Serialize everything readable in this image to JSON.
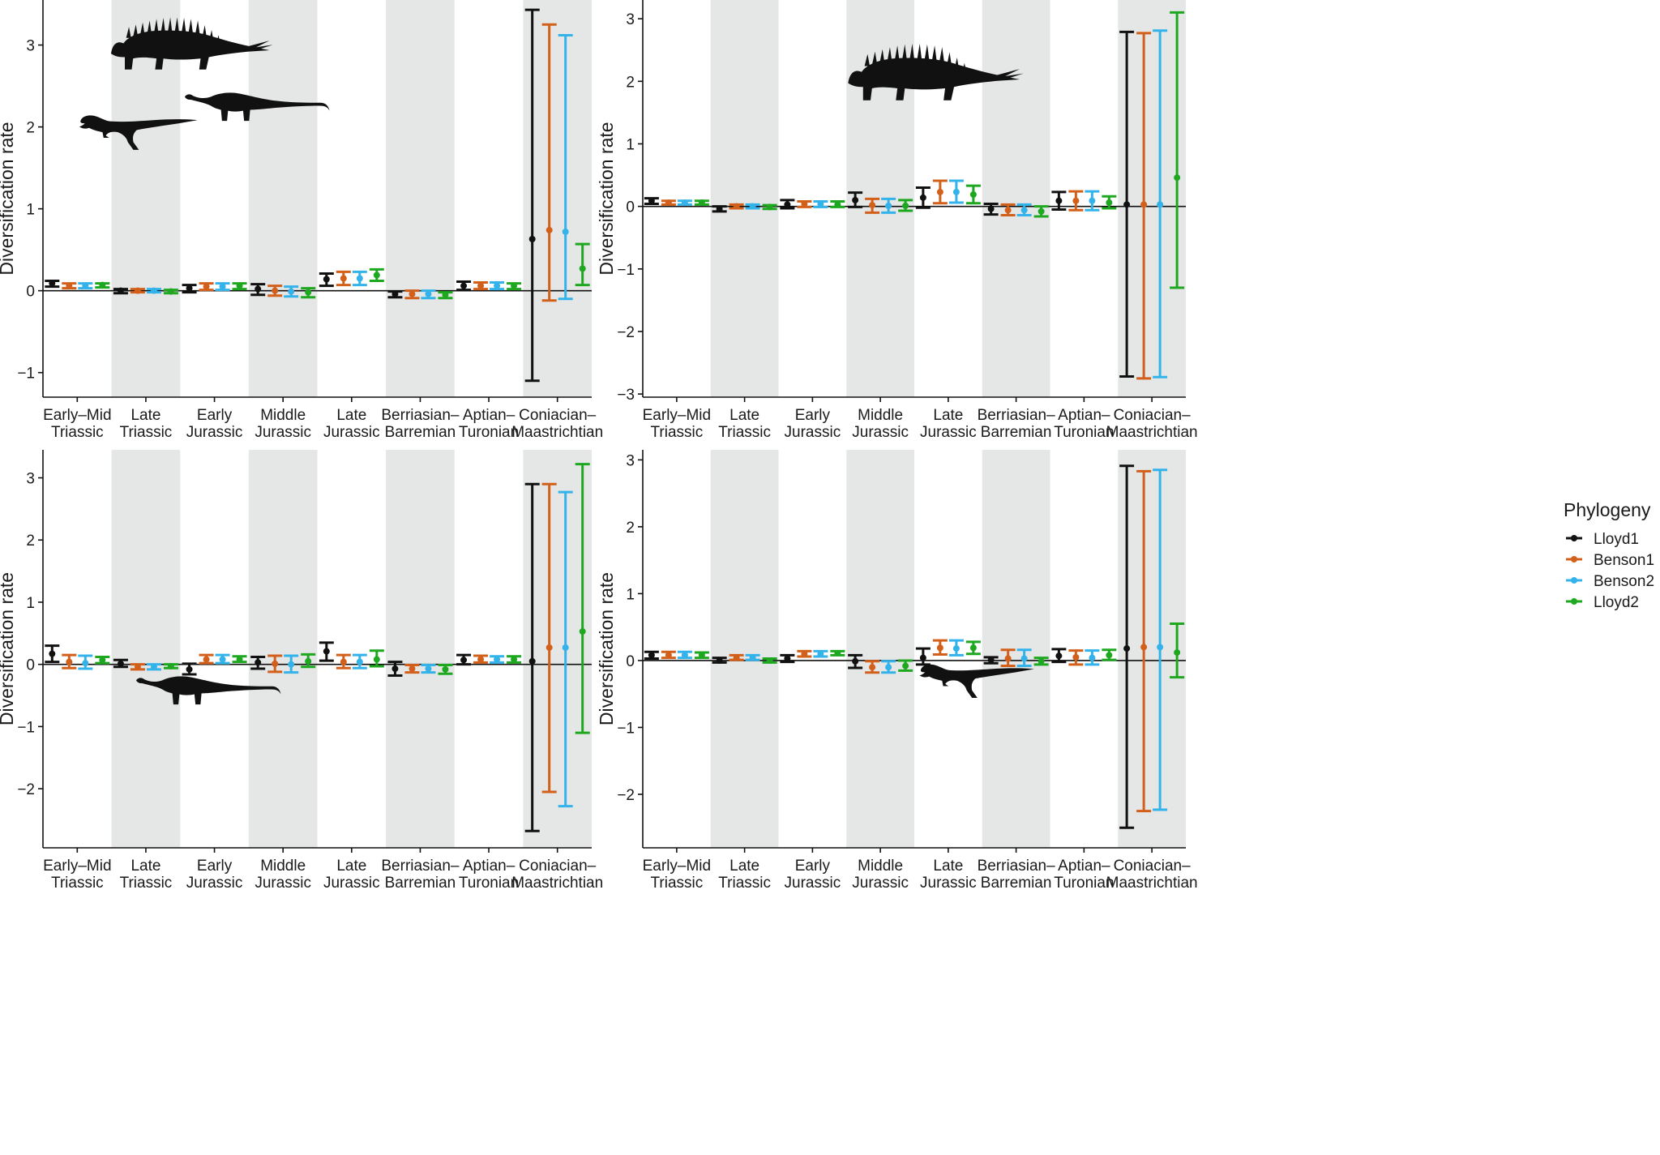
{
  "figure": {
    "legend": {
      "title": "Phylogeny",
      "entries": [
        "Lloyd1",
        "Benson1",
        "Benson2",
        "Lloyd2"
      ],
      "colors": [
        "#111111",
        "#d2601a",
        "#33b3ea",
        "#1ea820"
      ],
      "placement": "right"
    },
    "silhouettes": [
      [
        "thyreophoran-silhouette-icon",
        "sauropod-silhouette-icon",
        "theropod-silhouette-icon"
      ],
      [
        "thyreophoran-silhouette-icon"
      ],
      [
        "sauropod-silhouette-icon"
      ],
      [
        "theropod-silhouette-icon"
      ]
    ]
  },
  "chart_data": [
    {
      "type": "errorbar",
      "title": "",
      "panel": "all dinosaurs",
      "xlabel": "",
      "ylabel": "Diversification rate",
      "ylim": [
        -1.3,
        3.55
      ],
      "yticks": [
        -1,
        0,
        1,
        2,
        3
      ],
      "shaded_categories": [
        1,
        3,
        5,
        7
      ],
      "categories": [
        [
          "Early–Mid",
          "Triassic"
        ],
        [
          "Late",
          "Triassic"
        ],
        [
          "Early",
          "Jurassic"
        ],
        [
          "Middle",
          "Jurassic"
        ],
        [
          "Late",
          "Jurassic"
        ],
        [
          "Berriasian–",
          "Barremian"
        ],
        [
          "Aptian–",
          "Turonian"
        ],
        [
          "Coniacian–",
          "Maastrichtian"
        ]
      ],
      "series": [
        {
          "name": "Lloyd1",
          "values": [
            0.09,
            0.0,
            0.03,
            0.02,
            0.14,
            -0.04,
            0.06,
            0.63
          ],
          "lower": [
            0.05,
            -0.03,
            -0.02,
            -0.05,
            0.06,
            -0.08,
            0.01,
            -1.1
          ],
          "upper": [
            0.12,
            0.02,
            0.07,
            0.08,
            0.21,
            -0.01,
            0.11,
            3.43
          ]
        },
        {
          "name": "Benson1",
          "values": [
            0.06,
            0.0,
            0.05,
            0.0,
            0.15,
            -0.04,
            0.06,
            0.74
          ],
          "lower": [
            0.03,
            -0.02,
            0.01,
            -0.06,
            0.07,
            -0.09,
            0.02,
            -0.12
          ],
          "upper": [
            0.09,
            0.02,
            0.09,
            0.06,
            0.23,
            0.0,
            0.1,
            3.25
          ]
        },
        {
          "name": "Benson2",
          "values": [
            0.06,
            0.0,
            0.05,
            -0.01,
            0.15,
            -0.04,
            0.06,
            0.72
          ],
          "lower": [
            0.03,
            -0.02,
            0.01,
            -0.07,
            0.07,
            -0.09,
            0.02,
            -0.1
          ],
          "upper": [
            0.09,
            0.02,
            0.09,
            0.05,
            0.23,
            0.0,
            0.1,
            3.12
          ]
        },
        {
          "name": "Lloyd2",
          "values": [
            0.07,
            -0.01,
            0.06,
            -0.02,
            0.19,
            -0.05,
            0.06,
            0.27
          ],
          "lower": [
            0.04,
            -0.03,
            0.02,
            -0.08,
            0.12,
            -0.09,
            0.02,
            0.07
          ],
          "upper": [
            0.09,
            0.01,
            0.09,
            0.03,
            0.26,
            -0.02,
            0.09,
            0.57
          ]
        }
      ]
    },
    {
      "type": "errorbar",
      "title": "",
      "panel": "ornithischians",
      "xlabel": "",
      "ylabel": "Diversification rate",
      "ylim": [
        -3.05,
        3.3
      ],
      "yticks": [
        -3,
        -2,
        -1,
        0,
        1,
        2,
        3
      ],
      "shaded_categories": [
        1,
        3,
        5,
        7
      ],
      "categories": [
        [
          "Early–Mid",
          "Triassic"
        ],
        [
          "Late",
          "Triassic"
        ],
        [
          "Early",
          "Jurassic"
        ],
        [
          "Middle",
          "Jurassic"
        ],
        [
          "Late",
          "Jurassic"
        ],
        [
          "Berriasian–",
          "Barremian"
        ],
        [
          "Aptian–",
          "Turonian"
        ],
        [
          "Coniacian–",
          "Maastrichtian"
        ]
      ],
      "series": [
        {
          "name": "Lloyd1",
          "values": [
            0.09,
            -0.04,
            0.03,
            0.1,
            0.14,
            -0.04,
            0.09,
            0.03
          ],
          "lower": [
            0.04,
            -0.08,
            -0.03,
            -0.01,
            -0.02,
            -0.13,
            -0.05,
            -2.72
          ],
          "upper": [
            0.13,
            0.0,
            0.1,
            0.22,
            0.3,
            0.04,
            0.23,
            2.79
          ]
        },
        {
          "name": "Benson1",
          "values": [
            0.06,
            0.0,
            0.04,
            0.02,
            0.23,
            -0.06,
            0.09,
            0.03
          ],
          "lower": [
            0.03,
            -0.03,
            -0.01,
            -0.1,
            0.05,
            -0.14,
            -0.06,
            -2.75
          ],
          "upper": [
            0.09,
            0.03,
            0.08,
            0.12,
            0.41,
            0.03,
            0.24,
            2.77
          ]
        },
        {
          "name": "Benson2",
          "values": [
            0.06,
            0.0,
            0.04,
            0.01,
            0.23,
            -0.06,
            0.09,
            0.03
          ],
          "lower": [
            0.03,
            -0.03,
            -0.01,
            -0.1,
            0.06,
            -0.14,
            -0.06,
            -2.73
          ],
          "upper": [
            0.09,
            0.03,
            0.08,
            0.12,
            0.41,
            0.03,
            0.24,
            2.81
          ]
        },
        {
          "name": "Lloyd2",
          "values": [
            0.06,
            -0.01,
            0.03,
            0.01,
            0.19,
            -0.08,
            0.06,
            0.46
          ],
          "lower": [
            0.03,
            -0.04,
            -0.01,
            -0.07,
            0.05,
            -0.16,
            -0.03,
            -1.3
          ],
          "upper": [
            0.09,
            0.02,
            0.08,
            0.1,
            0.33,
            0.0,
            0.16,
            3.1
          ]
        }
      ]
    },
    {
      "type": "errorbar",
      "title": "",
      "panel": "sauropodomorphs",
      "xlabel": "",
      "ylabel": "Diversification rate",
      "ylim": [
        -2.95,
        3.45
      ],
      "yticks": [
        -2,
        -1,
        0,
        1,
        2,
        3
      ],
      "shaded_categories": [
        1,
        3,
        5,
        7
      ],
      "categories": [
        [
          "Early–Mid",
          "Triassic"
        ],
        [
          "Late",
          "Triassic"
        ],
        [
          "Early",
          "Jurassic"
        ],
        [
          "Middle",
          "Jurassic"
        ],
        [
          "Late",
          "Jurassic"
        ],
        [
          "Berriasian–",
          "Barremian"
        ],
        [
          "Aptian–",
          "Turonian"
        ],
        [
          "Coniacian–",
          "Maastrichtian"
        ]
      ],
      "series": [
        {
          "name": "Lloyd1",
          "values": [
            0.17,
            0.01,
            -0.08,
            0.03,
            0.21,
            -0.07,
            0.07,
            0.05
          ],
          "lower": [
            0.04,
            -0.04,
            -0.16,
            -0.07,
            0.06,
            -0.18,
            0.0,
            -2.68
          ],
          "upper": [
            0.3,
            0.07,
            0.01,
            0.12,
            0.35,
            0.04,
            0.15,
            2.9
          ]
        },
        {
          "name": "Benson1",
          "values": [
            0.04,
            -0.04,
            0.08,
            0.01,
            0.04,
            -0.07,
            0.08,
            0.27
          ],
          "lower": [
            -0.06,
            -0.08,
            0.02,
            -0.12,
            -0.06,
            -0.13,
            0.03,
            -2.05
          ],
          "upper": [
            0.15,
            0.0,
            0.15,
            0.14,
            0.15,
            -0.01,
            0.14,
            2.9
          ]
        },
        {
          "name": "Benson2",
          "values": [
            0.02,
            -0.04,
            0.08,
            0.0,
            0.04,
            -0.07,
            0.08,
            0.27
          ],
          "lower": [
            -0.07,
            -0.08,
            0.02,
            -0.13,
            -0.06,
            -0.13,
            0.03,
            -2.28
          ],
          "upper": [
            0.14,
            0.0,
            0.15,
            0.14,
            0.15,
            -0.01,
            0.13,
            2.77
          ]
        },
        {
          "name": "Lloyd2",
          "values": [
            0.07,
            -0.03,
            0.08,
            0.05,
            0.08,
            -0.08,
            0.08,
            0.53
          ],
          "lower": [
            0.02,
            -0.06,
            0.04,
            -0.04,
            -0.03,
            -0.15,
            0.03,
            -1.1
          ],
          "upper": [
            0.12,
            0.0,
            0.13,
            0.16,
            0.22,
            -0.01,
            0.13,
            3.22
          ]
        }
      ]
    },
    {
      "type": "errorbar",
      "title": "",
      "panel": "theropods",
      "xlabel": "",
      "ylabel": "Diversification rate",
      "ylim": [
        -2.8,
        3.15
      ],
      "yticks": [
        -2,
        -1,
        0,
        1,
        2,
        3
      ],
      "shaded_categories": [
        1,
        3,
        5,
        7
      ],
      "categories": [
        [
          "Early–Mid",
          "Triassic"
        ],
        [
          "Late",
          "Triassic"
        ],
        [
          "Early",
          "Jurassic"
        ],
        [
          "Middle",
          "Jurassic"
        ],
        [
          "Late",
          "Jurassic"
        ],
        [
          "Berriasian–",
          "Barremian"
        ],
        [
          "Aptian–",
          "Turonian"
        ],
        [
          "Coniacian–",
          "Maastrichtian"
        ]
      ],
      "series": [
        {
          "name": "Lloyd1",
          "values": [
            0.08,
            0.0,
            0.03,
            -0.01,
            0.04,
            0.01,
            0.07,
            0.18
          ],
          "lower": [
            0.03,
            -0.03,
            -0.02,
            -0.11,
            -0.06,
            -0.04,
            -0.02,
            -2.5
          ],
          "upper": [
            0.13,
            0.04,
            0.08,
            0.08,
            0.18,
            0.05,
            0.17,
            2.91
          ]
        },
        {
          "name": "Benson1",
          "values": [
            0.08,
            0.04,
            0.1,
            -0.1,
            0.19,
            0.03,
            0.05,
            0.2
          ],
          "lower": [
            0.04,
            0.01,
            0.06,
            -0.18,
            0.09,
            -0.08,
            -0.06,
            -2.25
          ],
          "upper": [
            0.13,
            0.08,
            0.14,
            -0.01,
            0.3,
            0.16,
            0.15,
            2.83
          ]
        },
        {
          "name": "Benson2",
          "values": [
            0.08,
            0.04,
            0.1,
            -0.1,
            0.18,
            0.03,
            0.04,
            0.2
          ],
          "lower": [
            0.04,
            0.01,
            0.06,
            -0.18,
            0.08,
            -0.08,
            -0.06,
            -2.23
          ],
          "upper": [
            0.13,
            0.08,
            0.14,
            -0.01,
            0.3,
            0.16,
            0.15,
            2.85
          ]
        },
        {
          "name": "Lloyd2",
          "values": [
            0.08,
            0.0,
            0.11,
            -0.08,
            0.19,
            -0.01,
            0.08,
            0.12
          ],
          "lower": [
            0.04,
            -0.03,
            0.08,
            -0.15,
            0.1,
            -0.06,
            0.01,
            -0.25
          ],
          "upper": [
            0.12,
            0.03,
            0.14,
            0.0,
            0.28,
            0.04,
            0.16,
            0.55
          ]
        }
      ]
    }
  ]
}
